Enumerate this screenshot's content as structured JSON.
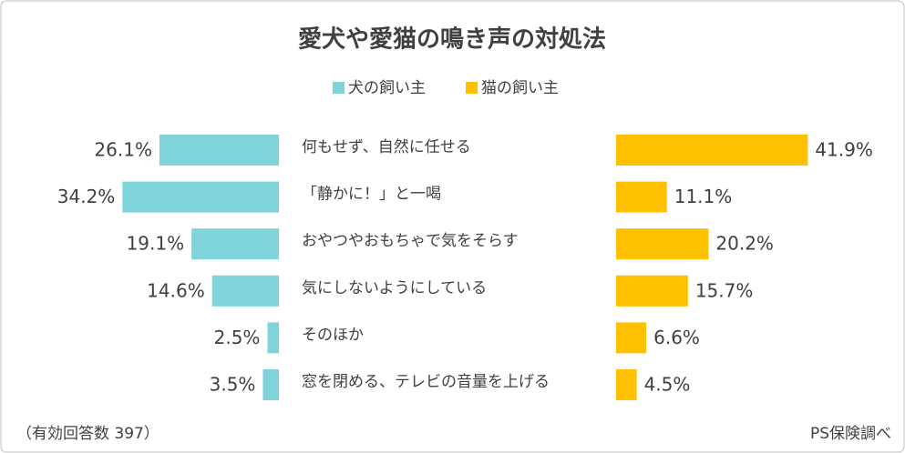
{
  "chart_data": {
    "type": "butterfly",
    "title": "愛犬や愛猫の鳴き声の対処法",
    "categories": [
      "何もせず、自然に任せる",
      "「静かに！」と一喝",
      "おやつやおもちゃで気をそらす",
      "気にしないようにしている",
      "そのほか",
      "窓を閉める、テレビの音量を上げる"
    ],
    "series": [
      {
        "name": "犬の飼い主",
        "color": "#7fd4dc",
        "values": [
          26.1,
          34.2,
          19.1,
          14.6,
          2.5,
          3.5
        ],
        "value_labels": [
          "26.1%",
          "34.2%",
          "19.1%",
          "14.6%",
          "2.5%",
          "3.5%"
        ]
      },
      {
        "name": "猫の飼い主",
        "color": "#ffc000",
        "values": [
          41.9,
          11.1,
          20.2,
          15.7,
          6.6,
          4.5
        ],
        "value_labels": [
          "41.9%",
          "11.1%",
          "20.2%",
          "15.7%",
          "6.6%",
          "4.5%"
        ]
      }
    ],
    "note": "（有効回答数 397）",
    "source": "PS保険調べ"
  }
}
